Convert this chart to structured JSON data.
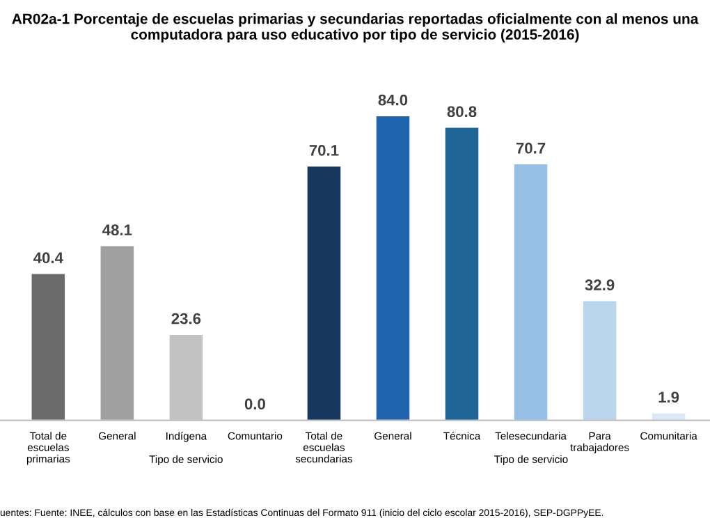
{
  "chart_data": {
    "type": "bar",
    "title": "AR02a-1 Porcentaje de escuelas primarias y secundarias reportadas oficialmente con al menos una computadora para uso educativo por tipo de servicio (2015-2016)",
    "categories": [
      "Total de\nescuelas\nprimarias",
      "General",
      "Indígena",
      "Comuntario",
      "Total de\nescuelas\nsecundarias",
      "General",
      "Técnica",
      "Telesecundaria",
      "Para\ntrabajadores",
      "Comunitaria"
    ],
    "values": [
      40.4,
      48.1,
      23.6,
      0.0,
      70.1,
      84.0,
      80.8,
      70.7,
      32.9,
      1.9
    ],
    "colors": [
      "#6b6b6b",
      "#a0a0a0",
      "#c2c2c2",
      "#d9d9d9",
      "#17375e",
      "#1f64ad",
      "#1f6696",
      "#95bfe4",
      "#b9d6ee",
      "#dbe9f6"
    ],
    "value_labels": [
      "40.4",
      "48.1",
      "23.6",
      "0.0",
      "70.1",
      "84.0",
      "80.8",
      "70.7",
      "32.9",
      "1.9"
    ],
    "grid": false,
    "legend": false,
    "annotations": [
      "Tipo de servicio",
      "Tipo de servicio",
      "uentes: Fuente: INEE, cálculos con base en las Estadísticas Continuas del Formato 911 (inicio del ciclo escolar 2015-2016), SEP-DGPPyEE."
    ]
  }
}
